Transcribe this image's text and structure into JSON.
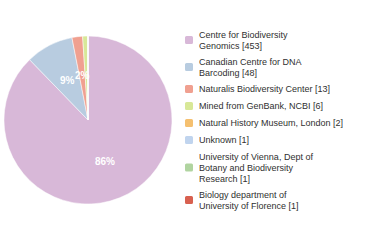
{
  "chart_data": {
    "type": "pie",
    "categories": [
      "Centre for Biodiversity\nGenomics [453]",
      "Canadian Centre for DNA\nBarcoding [48]",
      "Naturalis Biodiversity Center [13]",
      "Mined from GenBank, NCBI [6]",
      "Natural History Museum, London [2]",
      "Unknown [1]",
      "University of Vienna, Dept of\nBotany and Biodiversity\nResearch [1]",
      "Biology department of\nUniversity of Florence [1]"
    ],
    "values": [
      86,
      9,
      2,
      1,
      0,
      0,
      0,
      0
    ],
    "value_labels": [
      "86%",
      "9%",
      "2%",
      null,
      null,
      null,
      null,
      null
    ],
    "colors": [
      "#d8b8d8",
      "#b8cce0",
      "#f0a090",
      "#d8e898",
      "#f5c070",
      "#c0d4ee",
      "#b0d4a0",
      "#d86050"
    ],
    "data_labels": true,
    "legend": "right"
  }
}
